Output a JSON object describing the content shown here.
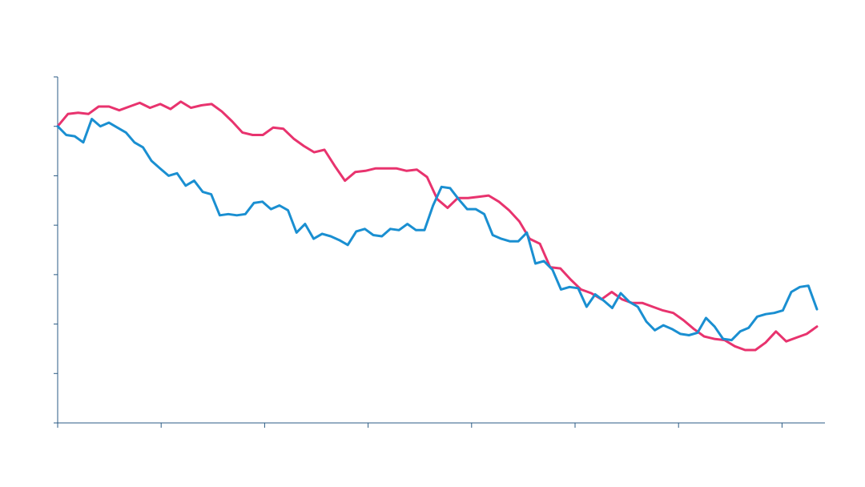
{
  "chart_data": {
    "type": "line",
    "title": "",
    "xlabel": "",
    "ylabel": "",
    "xlim": [
      0,
      74
    ],
    "ylim": [
      -9,
      5
    ],
    "y_ticks": [
      -9,
      -7,
      -5,
      -3,
      -1,
      1,
      3,
      5
    ],
    "x_ticks": [
      0,
      10,
      20,
      30,
      40,
      50,
      60,
      70
    ],
    "grid": false,
    "legend": "none",
    "series": [
      {
        "color": "#e8336e",
        "values": [
          3,
          3.5,
          3.55,
          3.5,
          3.8,
          3.8,
          3.65,
          3.8,
          3.95,
          3.75,
          3.9,
          3.7,
          4,
          3.75,
          3.85,
          3.9,
          3.6,
          3.2,
          2.75,
          2.65,
          2.65,
          2.95,
          2.9,
          2.5,
          2.2,
          1.95,
          2.05,
          1.4,
          0.8,
          1.15,
          1.2,
          1.3,
          1.3,
          1.3,
          1.2,
          1.25,
          0.95,
          0.05,
          -0.3,
          0.1,
          0.1,
          0.15,
          0.2,
          -0.05,
          -0.4,
          -0.85,
          -1.55,
          -1.75,
          -2.7,
          -2.75,
          -3.2,
          -3.6,
          -3.75,
          -4,
          -3.7,
          -4,
          -4.15,
          -4.15,
          -4.3,
          -4.45,
          -4.55,
          -4.85,
          -5.2,
          -5.5,
          -5.6,
          -5.65,
          -5.9,
          -6.05,
          -6.05,
          -5.75,
          -5.3,
          -5.7,
          -5.55,
          -5.4,
          -5.1
        ]
      },
      {
        "color": "#1a8fd1",
        "values": [
          3,
          2.65,
          2.6,
          2.35,
          3.3,
          3,
          3.15,
          2.95,
          2.75,
          2.35,
          2.15,
          1.6,
          1.3,
          1,
          1.1,
          0.6,
          0.8,
          0.35,
          0.25,
          -0.6,
          -0.55,
          -0.6,
          -0.55,
          -0.1,
          -0.05,
          -0.35,
          -0.2,
          -0.4,
          -1.3,
          -0.95,
          -1.55,
          -1.35,
          -1.45,
          -1.6,
          -1.8,
          -1.25,
          -1.15,
          -1.4,
          -1.45,
          -1.15,
          -1.2,
          -0.95,
          -1.2,
          -1.2,
          -0.2,
          0.55,
          0.5,
          0.05,
          -0.35,
          -0.35,
          -0.55,
          -1.4,
          -1.55,
          -1.65,
          -1.65,
          -1.3,
          -2.55,
          -2.45,
          -2.8,
          -3.6,
          -3.5,
          -3.55,
          -4.3,
          -3.8,
          -4.05,
          -4.35,
          -3.75,
          -4.1,
          -4.3,
          -4.9,
          -5.25,
          -5.05,
          -5.2,
          -5.4,
          -5.45,
          -5.35,
          -4.75,
          -5.1,
          -5.6,
          -5.65,
          -5.3,
          -5.15,
          -4.7,
          -4.6,
          -4.55,
          -4.45,
          -3.7,
          -3.5,
          -3.45,
          -4.4
        ]
      }
    ]
  }
}
